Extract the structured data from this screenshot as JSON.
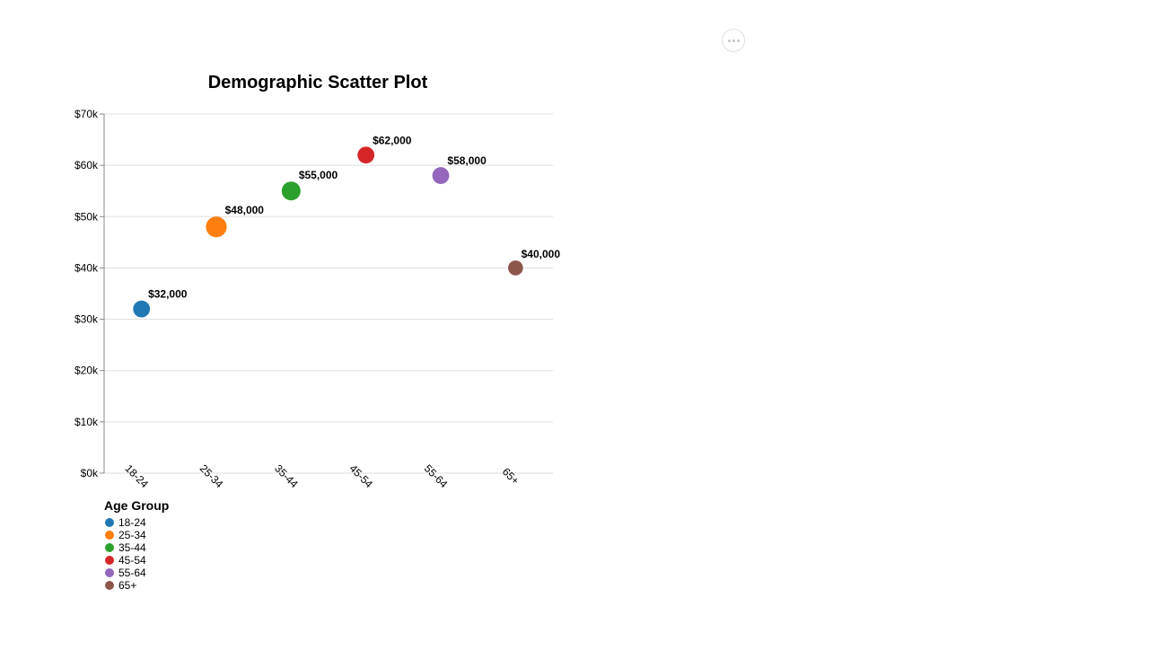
{
  "actions_menu": {
    "icon": "ellipsis-icon"
  },
  "chart_data": {
    "type": "scatter",
    "title": "Demographic Scatter Plot",
    "xlabel": "",
    "ylabel": "",
    "categories": [
      "18-24",
      "25-34",
      "35-44",
      "45-54",
      "55-64",
      "65+"
    ],
    "values": [
      32000,
      48000,
      55000,
      62000,
      58000,
      40000
    ],
    "data_labels": [
      "$32,000",
      "$48,000",
      "$55,000",
      "$62,000",
      "$58,000",
      "$40,000"
    ],
    "colors": [
      "#1f77b4",
      "#ff7f0e",
      "#2ca02c",
      "#d62728",
      "#9467bd",
      "#8c564b"
    ],
    "point_sizes": [
      4,
      6,
      5,
      4,
      4,
      3
    ],
    "ylim": [
      0,
      70000
    ],
    "yticks": [
      0,
      10000,
      20000,
      30000,
      40000,
      50000,
      60000,
      70000
    ],
    "ytick_labels": [
      "$0k",
      "$10k",
      "$20k",
      "$30k",
      "$40k",
      "$50k",
      "$60k",
      "$70k"
    ],
    "grid": true,
    "legend": {
      "title": "Age Group",
      "placement": "bottom-left",
      "entries": [
        "18-24",
        "25-34",
        "35-44",
        "45-54",
        "55-64",
        "65+"
      ]
    }
  }
}
